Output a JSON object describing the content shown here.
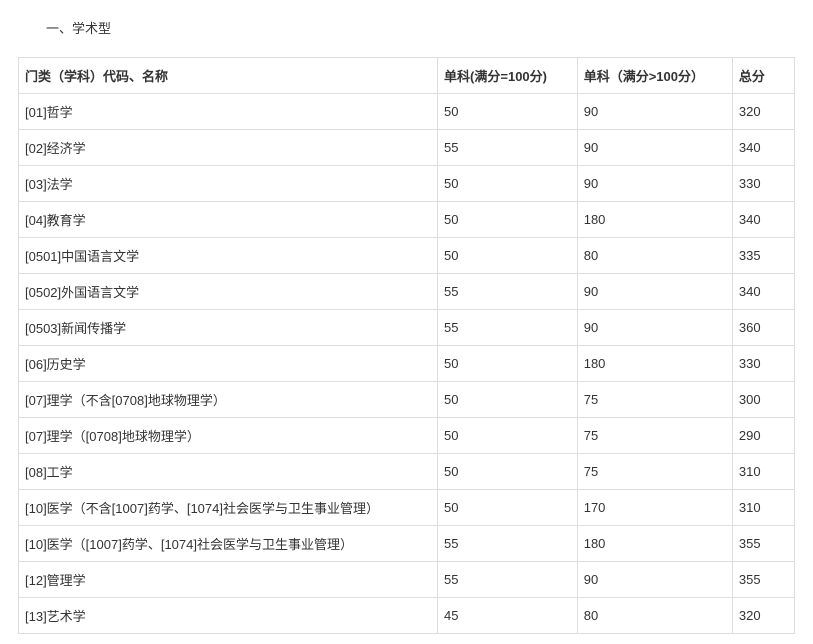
{
  "title": "一、学术型",
  "table": {
    "columns": [
      "门类（学科）代码、名称",
      "单科(满分=100分)",
      "单科（满分>100分）",
      "总分"
    ],
    "rows": [
      [
        "[01]哲学",
        "50",
        "90",
        "320"
      ],
      [
        "[02]经济学",
        "55",
        "90",
        "340"
      ],
      [
        "[03]法学",
        "50",
        "90",
        "330"
      ],
      [
        "[04]教育学",
        "50",
        "180",
        "340"
      ],
      [
        "[0501]中国语言文学",
        "50",
        "80",
        "335"
      ],
      [
        "[0502]外国语言文学",
        "55",
        "90",
        "340"
      ],
      [
        "[0503]新闻传播学",
        "55",
        "90",
        "360"
      ],
      [
        "[06]历史学",
        "50",
        "180",
        "330"
      ],
      [
        "[07]理学（不含[0708]地球物理学）",
        "50",
        "75",
        "300"
      ],
      [
        "[07]理学（[0708]地球物理学）",
        "50",
        "75",
        "290"
      ],
      [
        "[08]工学",
        "50",
        "75",
        "310"
      ],
      [
        "[10]医学（不含[1007]药学、[1074]社会医学与卫生事业管理）",
        "50",
        "170",
        "310"
      ],
      [
        "[10]医学（[1007]药学、[1074]社会医学与卫生事业管理）",
        "55",
        "180",
        "355"
      ],
      [
        "[12]管理学",
        "55",
        "90",
        "355"
      ],
      [
        "[13]艺术学",
        "45",
        "80",
        "320"
      ]
    ]
  }
}
